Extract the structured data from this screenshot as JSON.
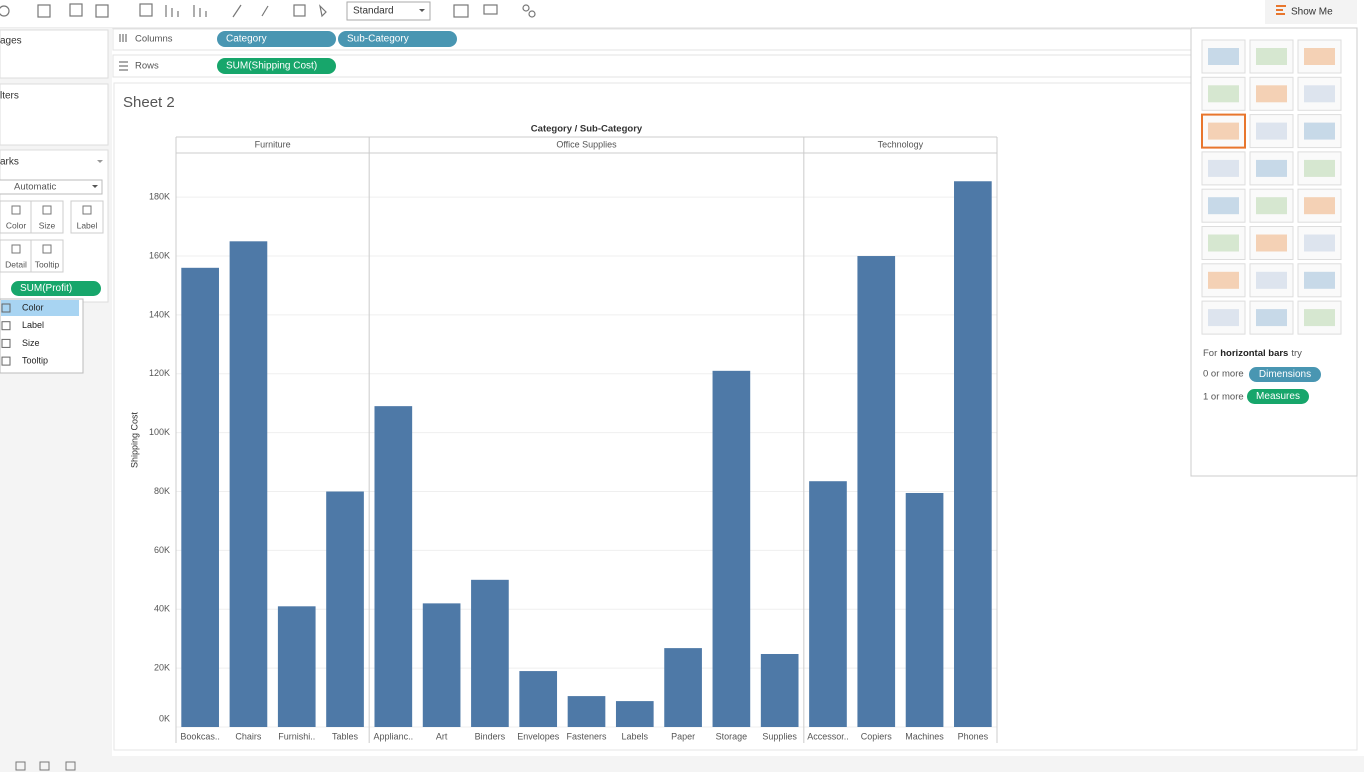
{
  "toolbar": {
    "fit": "Standard",
    "show_me": "Show Me"
  },
  "shelves": {
    "columns": {
      "label": "Columns",
      "pills": [
        "Category",
        "Sub-Category"
      ]
    },
    "rows": {
      "label": "Rows",
      "pills": [
        "SUM(Shipping Cost)"
      ]
    }
  },
  "side_panel": {
    "pages": "ages",
    "filters": "lters",
    "marks": {
      "title": "arks",
      "mark_type": "Automatic",
      "buttons": [
        "Color",
        "Size",
        "Label",
        "Detail",
        "Tooltip"
      ],
      "pill": "SUM(Profit)",
      "menu": [
        "Color",
        "Label",
        "Size",
        "Tooltip"
      ]
    }
  },
  "sheet_title": "Sheet 2",
  "chart_data": {
    "type": "bar",
    "title": "Category / Sub-Category",
    "y_label": "Shipping Cost",
    "color": "#4e79a7",
    "grid": true,
    "ylim": [
      0,
      195000
    ],
    "yticks": [
      {
        "value": 0,
        "label": "0K"
      },
      {
        "value": 20000,
        "label": "20K"
      },
      {
        "value": 40000,
        "label": "40K"
      },
      {
        "value": 60000,
        "label": "60K"
      },
      {
        "value": 80000,
        "label": "80K"
      },
      {
        "value": 100000,
        "label": "100K"
      },
      {
        "value": 120000,
        "label": "120K"
      },
      {
        "value": 140000,
        "label": "140K"
      },
      {
        "value": 160000,
        "label": "160K"
      },
      {
        "value": 180000,
        "label": "180K"
      }
    ],
    "groups": [
      {
        "name": "Furniture",
        "categories": [
          "Bookcas..",
          "Chairs",
          "Furnishi..",
          "Tables"
        ],
        "values": [
          156000,
          165000,
          41000,
          80000
        ]
      },
      {
        "name": "Office Supplies",
        "categories": [
          "Applianc..",
          "Art",
          "Binders",
          "Envelopes",
          "Fasteners",
          "Labels",
          "Paper",
          "Storage",
          "Supplies"
        ],
        "values": [
          109000,
          42000,
          50000,
          19000,
          10500,
          8800,
          26800,
          121000,
          24800
        ]
      },
      {
        "name": "Technology",
        "categories": [
          "Accessor..",
          "Copiers",
          "Machines",
          "Phones"
        ],
        "values": [
          83500,
          160000,
          79500,
          185400
        ]
      }
    ]
  },
  "show_me": {
    "hint": [
      "For",
      "horizontal bars",
      "try"
    ],
    "dimensions": {
      "text": "0 or more",
      "pill": "Dimensions"
    },
    "measures": {
      "text": "1 or more",
      "pill": "Measures"
    }
  }
}
